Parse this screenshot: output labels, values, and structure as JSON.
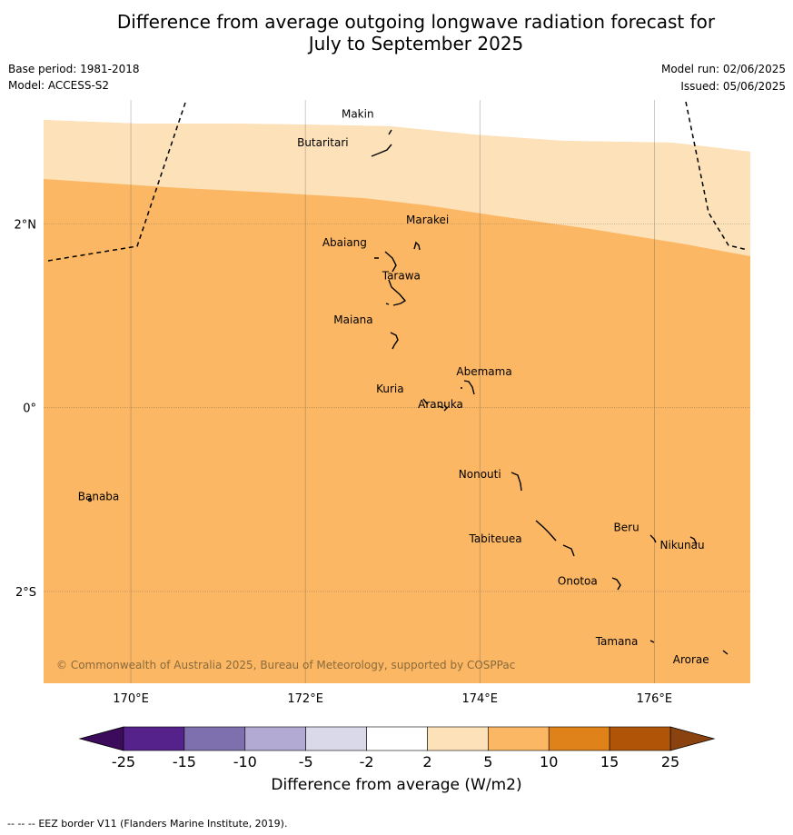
{
  "header": {
    "title_line1": "Difference from average outgoing longwave radiation forecast for",
    "title_line2": "July to September 2025",
    "base_period": "Base period: 1981-2018",
    "model": "Model: ACCESS-S2",
    "model_run": "Model run: 02/06/2025",
    "issued": "Issued: 05/06/2025"
  },
  "map": {
    "extent": {
      "lon": [
        169.0,
        177.1
      ],
      "lat": [
        -3.0,
        3.35
      ]
    },
    "fill_colors": {
      "light": "#fde1b8",
      "medium": "#fbb763"
    },
    "latitude_labels": [
      {
        "lat": 2,
        "label": "2°N"
      },
      {
        "lat": 0,
        "label": "0°"
      },
      {
        "lat": -2,
        "label": "2°S"
      }
    ],
    "longitude_labels": [
      {
        "lon": 170,
        "label": "170°E"
      },
      {
        "lon": 172,
        "label": "172°E"
      },
      {
        "lon": 174,
        "label": "174°E"
      },
      {
        "lon": 176,
        "label": "176°E"
      }
    ],
    "places": [
      {
        "name": "Makin",
        "lon": 172.6,
        "lat": 3.19
      },
      {
        "name": "Butaritari",
        "lon": 172.2,
        "lat": 2.88
      },
      {
        "name": "Marakei",
        "lon": 173.4,
        "lat": 2.04
      },
      {
        "name": "Abaiang",
        "lon": 172.45,
        "lat": 1.79
      },
      {
        "name": "Tarawa",
        "lon": 173.1,
        "lat": 1.43
      },
      {
        "name": "Maiana",
        "lon": 172.55,
        "lat": 0.95
      },
      {
        "name": "Abemama",
        "lon": 174.05,
        "lat": 0.39
      },
      {
        "name": "Kuria",
        "lon": 172.97,
        "lat": 0.2
      },
      {
        "name": "Aranuka",
        "lon": 173.55,
        "lat": 0.03
      },
      {
        "name": "Nonouti",
        "lon": 174.0,
        "lat": -0.73
      },
      {
        "name": "Banaba",
        "lon": 169.63,
        "lat": -0.97
      },
      {
        "name": "Beru",
        "lon": 175.68,
        "lat": -1.31
      },
      {
        "name": "Tabiteuea",
        "lon": 174.18,
        "lat": -1.43
      },
      {
        "name": "Nikunau",
        "lon": 176.32,
        "lat": -1.5
      },
      {
        "name": "Onotoa",
        "lon": 175.12,
        "lat": -1.89
      },
      {
        "name": "Tamana",
        "lon": 175.57,
        "lat": -2.55
      },
      {
        "name": "Arorae",
        "lon": 176.42,
        "lat": -2.75
      }
    ],
    "copyright": "© Commonwealth of Australia 2025, Bureau of Meteorology, supported by COSPPac"
  },
  "colorbar": {
    "ticks": [
      "-25",
      "-15",
      "-10",
      "-5",
      "-2",
      "2",
      "5",
      "10",
      "15",
      "25"
    ],
    "colors": [
      "#55218b",
      "#7e70ae",
      "#b2aad3",
      "#d9d9ea",
      "#ffffff",
      "#fde1b8",
      "#fbb763",
      "#e0821a",
      "#b05508"
    ],
    "low_extend_color": "#3c0b5c",
    "high_extend_color": "#8a430e",
    "label": "Difference from average (W/m2)"
  },
  "footer": {
    "legend_symbol": "--  --  --",
    "legend_text": "EEZ border V11 (Flanders Marine Institute, 2019)."
  }
}
